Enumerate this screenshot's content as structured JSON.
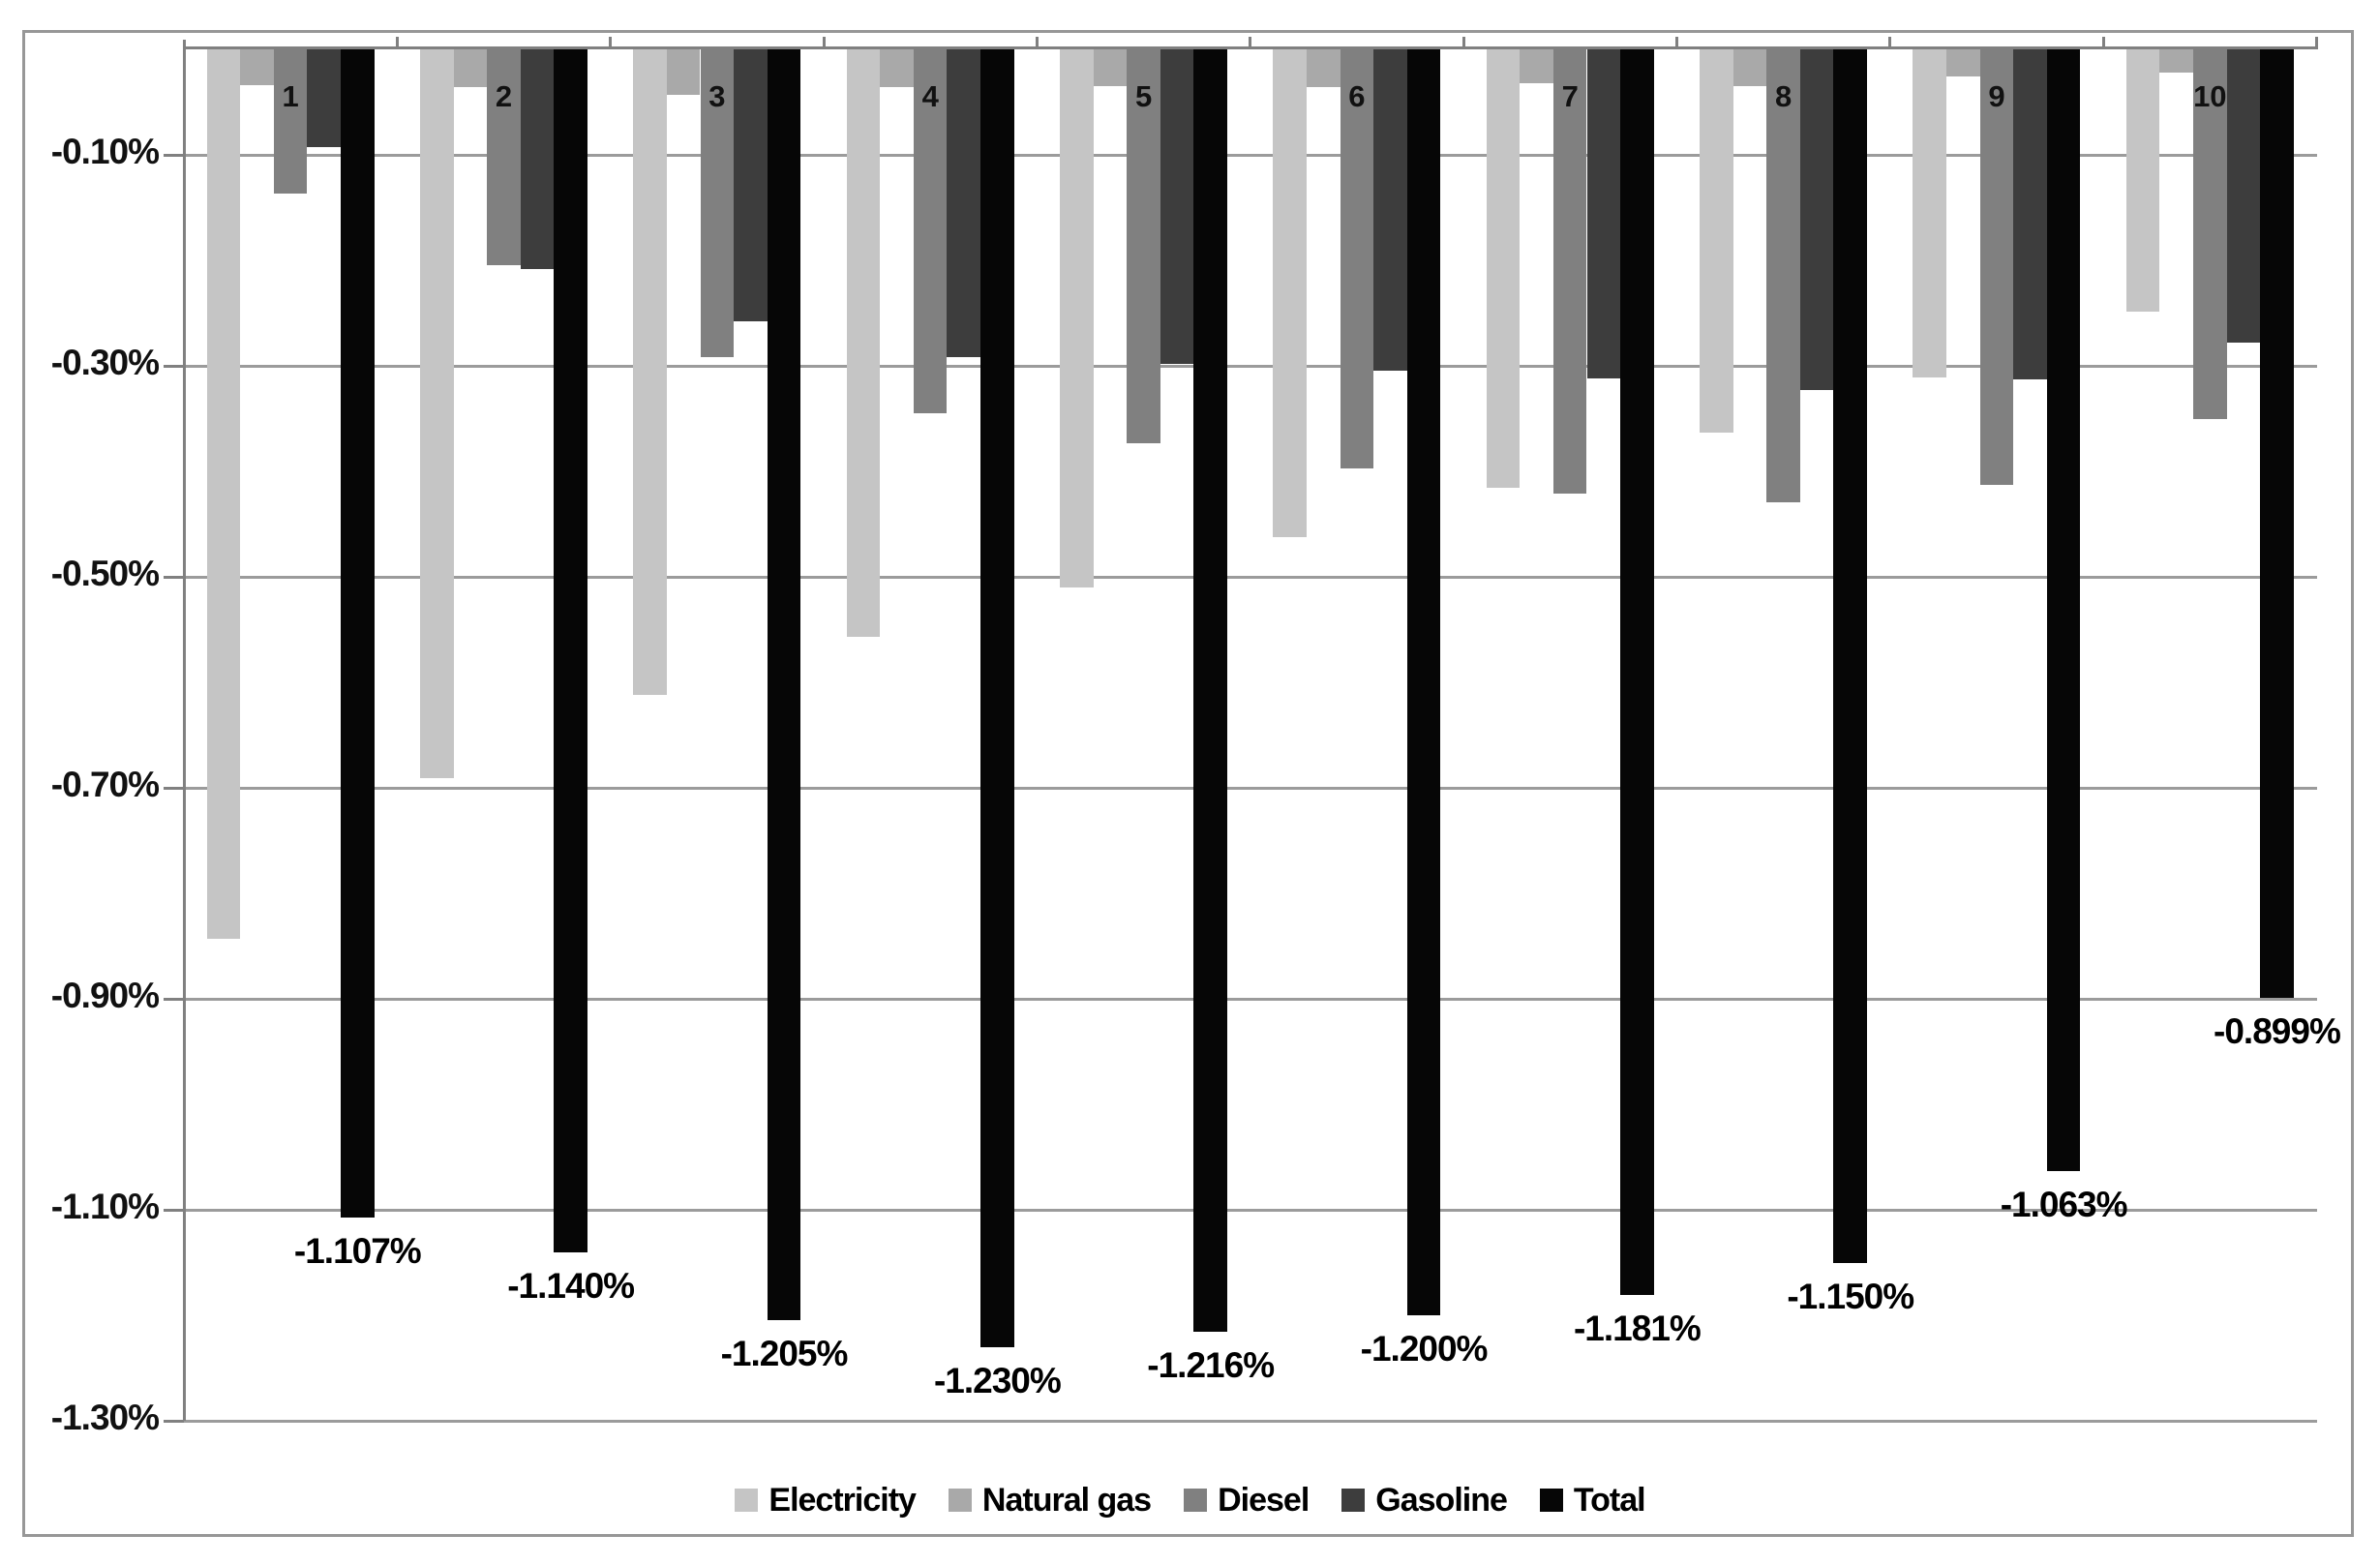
{
  "chart_data": {
    "type": "bar",
    "orientation": "vertical-negative",
    "title": "",
    "xlabel": "",
    "ylabel": "",
    "categories": [
      "1",
      "2",
      "3",
      "4",
      "5",
      "6",
      "7",
      "8",
      "9",
      "10"
    ],
    "series": [
      {
        "name": "Electricity",
        "color": "#c5c5c5",
        "values": [
          -0.843,
          -0.691,
          -0.612,
          -0.557,
          -0.51,
          -0.462,
          -0.416,
          -0.363,
          -0.311,
          -0.249
        ]
      },
      {
        "name": "Natural gas",
        "color": "#a9a9a9",
        "values": [
          -0.034,
          -0.036,
          -0.043,
          -0.036,
          -0.035,
          -0.036,
          -0.032,
          -0.035,
          -0.026,
          -0.022
        ]
      },
      {
        "name": "Diesel",
        "color": "#808080",
        "values": [
          -0.137,
          -0.205,
          -0.292,
          -0.345,
          -0.373,
          -0.397,
          -0.421,
          -0.429,
          -0.413,
          -0.35
        ]
      },
      {
        "name": "Gasoline",
        "color": "#3d3d3d",
        "values": [
          -0.093,
          -0.208,
          -0.258,
          -0.292,
          -0.298,
          -0.305,
          -0.312,
          -0.323,
          -0.313,
          -0.278
        ]
      },
      {
        "name": "Total",
        "color": "#060606",
        "values": [
          -1.107,
          -1.14,
          -1.205,
          -1.23,
          -1.216,
          -1.2,
          -1.181,
          -1.15,
          -1.063,
          -0.899
        ]
      }
    ],
    "total_labels": [
      "-1.107%",
      "-1.140%",
      "-1.205%",
      "-1.230%",
      "-1.216%",
      "-1.200%",
      "-1.181%",
      "-1.150%",
      "-1.063%",
      "-0.899%"
    ],
    "yticks": [
      {
        "label": "-0.10%",
        "value": -0.1
      },
      {
        "label": "-0.30%",
        "value": -0.3
      },
      {
        "label": "-0.50%",
        "value": -0.5
      },
      {
        "label": "-0.70%",
        "value": -0.7
      },
      {
        "label": "-0.90%",
        "value": -0.9
      },
      {
        "label": "-1.10%",
        "value": -1.1
      },
      {
        "label": "-1.30%",
        "value": -1.3
      }
    ],
    "ylim": [
      0,
      -1.3
    ],
    "grid": "horizontal",
    "legend_position": "bottom",
    "legend": [
      "Electricity",
      "Natural gas",
      "Diesel",
      "Gasoline",
      "Total"
    ],
    "colors": {
      "electricity": "#c5c5c5",
      "natural_gas": "#a9a9a9",
      "diesel": "#808080",
      "gasoline": "#3d3d3d",
      "total": "#060606",
      "gridline": "#9b9b9b",
      "axis": "#808080",
      "border": "#979797",
      "background": "#ffffff"
    }
  }
}
